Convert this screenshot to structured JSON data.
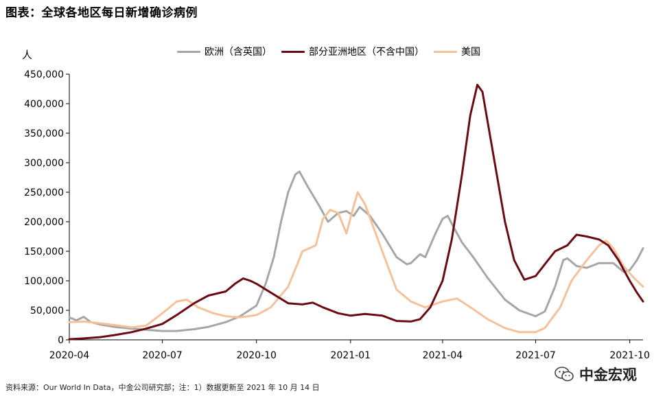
{
  "header": {
    "title": "图表：全球各地区每日新增确诊病例",
    "unit": "人"
  },
  "footer": {
    "source": "资料来源：Our World In Data，中金公司研究部；注：1）数据更新至 2021 年 10 月 14 日",
    "watermark": "中金宏观"
  },
  "chart_data": {
    "type": "line",
    "title": "图表：全球各地区每日新增确诊病例",
    "ylabel": "人",
    "ylim": [
      0,
      450000
    ],
    "yticks": [
      "0",
      "50,000",
      "100,000",
      "150,000",
      "200,000",
      "250,000",
      "300,000",
      "350,000",
      "400,000",
      "450,000"
    ],
    "ytick_values": [
      0,
      50000,
      100000,
      150000,
      200000,
      250000,
      300000,
      350000,
      400000,
      450000
    ],
    "xlim": [
      "2020-04-01",
      "2021-10-14"
    ],
    "xticks": [
      "2020-04",
      "2020-07",
      "2020-10",
      "2021-01",
      "2021-04",
      "2021-07",
      "2021-10"
    ],
    "xtick_dates": [
      "2020-04-01",
      "2020-07-01",
      "2020-10-01",
      "2021-01-01",
      "2021-04-01",
      "2021-07-01",
      "2021-10-01"
    ],
    "grid": false,
    "legend_position": "top",
    "series": [
      {
        "name": "欧洲（含英国）",
        "color": "#a6a6a6",
        "points": [
          [
            "2020-04-01",
            38000
          ],
          [
            "2020-04-08",
            33000
          ],
          [
            "2020-04-15",
            39000
          ],
          [
            "2020-04-22",
            30000
          ],
          [
            "2020-05-01",
            26000
          ],
          [
            "2020-05-15",
            22000
          ],
          [
            "2020-06-01",
            19000
          ],
          [
            "2020-06-15",
            17000
          ],
          [
            "2020-07-01",
            15000
          ],
          [
            "2020-07-15",
            15000
          ],
          [
            "2020-08-01",
            18000
          ],
          [
            "2020-08-15",
            22000
          ],
          [
            "2020-09-01",
            30000
          ],
          [
            "2020-09-15",
            40000
          ],
          [
            "2020-10-01",
            58000
          ],
          [
            "2020-10-10",
            95000
          ],
          [
            "2020-10-18",
            140000
          ],
          [
            "2020-10-25",
            200000
          ],
          [
            "2020-11-01",
            250000
          ],
          [
            "2020-11-08",
            280000
          ],
          [
            "2020-11-12",
            285000
          ],
          [
            "2020-11-20",
            260000
          ],
          [
            "2020-12-01",
            228000
          ],
          [
            "2020-12-10",
            200000
          ],
          [
            "2020-12-20",
            215000
          ],
          [
            "2020-12-28",
            218000
          ],
          [
            "2021-01-04",
            210000
          ],
          [
            "2021-01-10",
            225000
          ],
          [
            "2021-01-20",
            210000
          ],
          [
            "2021-02-01",
            180000
          ],
          [
            "2021-02-15",
            140000
          ],
          [
            "2021-02-25",
            128000
          ],
          [
            "2021-03-01",
            130000
          ],
          [
            "2021-03-10",
            145000
          ],
          [
            "2021-03-15",
            140000
          ],
          [
            "2021-03-25",
            180000
          ],
          [
            "2021-04-01",
            205000
          ],
          [
            "2021-04-06",
            210000
          ],
          [
            "2021-04-12",
            190000
          ],
          [
            "2021-04-20",
            165000
          ],
          [
            "2021-05-01",
            140000
          ],
          [
            "2021-05-15",
            105000
          ],
          [
            "2021-06-01",
            68000
          ],
          [
            "2021-06-15",
            50000
          ],
          [
            "2021-07-01",
            40000
          ],
          [
            "2021-07-10",
            48000
          ],
          [
            "2021-07-20",
            90000
          ],
          [
            "2021-07-28",
            135000
          ],
          [
            "2021-08-01",
            138000
          ],
          [
            "2021-08-10",
            125000
          ],
          [
            "2021-08-20",
            122000
          ],
          [
            "2021-09-01",
            130000
          ],
          [
            "2021-09-15",
            130000
          ],
          [
            "2021-09-25",
            115000
          ],
          [
            "2021-10-01",
            118000
          ],
          [
            "2021-10-08",
            135000
          ],
          [
            "2021-10-14",
            155000
          ]
        ]
      },
      {
        "name": "部分亚洲地区（不含中国）",
        "color": "#6b0a13",
        "points": [
          [
            "2020-04-01",
            1000
          ],
          [
            "2020-04-15",
            2500
          ],
          [
            "2020-05-01",
            4500
          ],
          [
            "2020-05-15",
            8000
          ],
          [
            "2020-06-01",
            13000
          ],
          [
            "2020-06-15",
            19000
          ],
          [
            "2020-07-01",
            27000
          ],
          [
            "2020-07-15",
            42000
          ],
          [
            "2020-08-01",
            62000
          ],
          [
            "2020-08-15",
            75000
          ],
          [
            "2020-09-01",
            82000
          ],
          [
            "2020-09-10",
            95000
          ],
          [
            "2020-09-18",
            104000
          ],
          [
            "2020-09-25",
            100000
          ],
          [
            "2020-10-01",
            95000
          ],
          [
            "2020-10-15",
            80000
          ],
          [
            "2020-11-01",
            62000
          ],
          [
            "2020-11-15",
            60000
          ],
          [
            "2020-11-25",
            63000
          ],
          [
            "2020-12-05",
            55000
          ],
          [
            "2020-12-20",
            45000
          ],
          [
            "2021-01-01",
            41000
          ],
          [
            "2021-01-15",
            44000
          ],
          [
            "2021-02-01",
            41000
          ],
          [
            "2021-02-15",
            32000
          ],
          [
            "2021-03-01",
            31000
          ],
          [
            "2021-03-10",
            35000
          ],
          [
            "2021-03-20",
            55000
          ],
          [
            "2021-04-01",
            100000
          ],
          [
            "2021-04-10",
            170000
          ],
          [
            "2021-04-20",
            280000
          ],
          [
            "2021-04-28",
            380000
          ],
          [
            "2021-05-05",
            432000
          ],
          [
            "2021-05-10",
            420000
          ],
          [
            "2021-05-20",
            320000
          ],
          [
            "2021-06-01",
            200000
          ],
          [
            "2021-06-10",
            135000
          ],
          [
            "2021-06-20",
            102000
          ],
          [
            "2021-07-01",
            108000
          ],
          [
            "2021-07-10",
            128000
          ],
          [
            "2021-07-20",
            150000
          ],
          [
            "2021-08-01",
            160000
          ],
          [
            "2021-08-10",
            178000
          ],
          [
            "2021-08-20",
            175000
          ],
          [
            "2021-09-01",
            170000
          ],
          [
            "2021-09-10",
            160000
          ],
          [
            "2021-09-20",
            135000
          ],
          [
            "2021-10-01",
            100000
          ],
          [
            "2021-10-08",
            80000
          ],
          [
            "2021-10-14",
            65000
          ]
        ]
      },
      {
        "name": "美国",
        "color": "#f4c19a",
        "points": [
          [
            "2020-04-01",
            30000
          ],
          [
            "2020-04-15",
            31000
          ],
          [
            "2020-05-01",
            28000
          ],
          [
            "2020-05-15",
            25000
          ],
          [
            "2020-06-01",
            21000
          ],
          [
            "2020-06-15",
            24000
          ],
          [
            "2020-07-01",
            45000
          ],
          [
            "2020-07-15",
            65000
          ],
          [
            "2020-07-25",
            68000
          ],
          [
            "2020-08-05",
            55000
          ],
          [
            "2020-08-20",
            45000
          ],
          [
            "2020-09-01",
            40000
          ],
          [
            "2020-09-15",
            38000
          ],
          [
            "2020-10-01",
            42000
          ],
          [
            "2020-10-15",
            55000
          ],
          [
            "2020-11-01",
            90000
          ],
          [
            "2020-11-15",
            150000
          ],
          [
            "2020-11-28",
            160000
          ],
          [
            "2020-12-05",
            205000
          ],
          [
            "2020-12-12",
            220000
          ],
          [
            "2020-12-20",
            215000
          ],
          [
            "2020-12-28",
            180000
          ],
          [
            "2021-01-03",
            220000
          ],
          [
            "2021-01-08",
            250000
          ],
          [
            "2021-01-15",
            230000
          ],
          [
            "2021-02-01",
            150000
          ],
          [
            "2021-02-15",
            85000
          ],
          [
            "2021-03-01",
            65000
          ],
          [
            "2021-03-15",
            55000
          ],
          [
            "2021-04-01",
            65000
          ],
          [
            "2021-04-15",
            70000
          ],
          [
            "2021-05-01",
            52000
          ],
          [
            "2021-05-15",
            35000
          ],
          [
            "2021-06-01",
            20000
          ],
          [
            "2021-06-15",
            13000
          ],
          [
            "2021-07-01",
            13000
          ],
          [
            "2021-07-10",
            20000
          ],
          [
            "2021-07-25",
            55000
          ],
          [
            "2021-08-05",
            100000
          ],
          [
            "2021-08-20",
            135000
          ],
          [
            "2021-09-01",
            160000
          ],
          [
            "2021-09-08",
            168000
          ],
          [
            "2021-09-15",
            155000
          ],
          [
            "2021-09-25",
            125000
          ],
          [
            "2021-10-05",
            105000
          ],
          [
            "2021-10-14",
            90000
          ]
        ]
      }
    ]
  }
}
